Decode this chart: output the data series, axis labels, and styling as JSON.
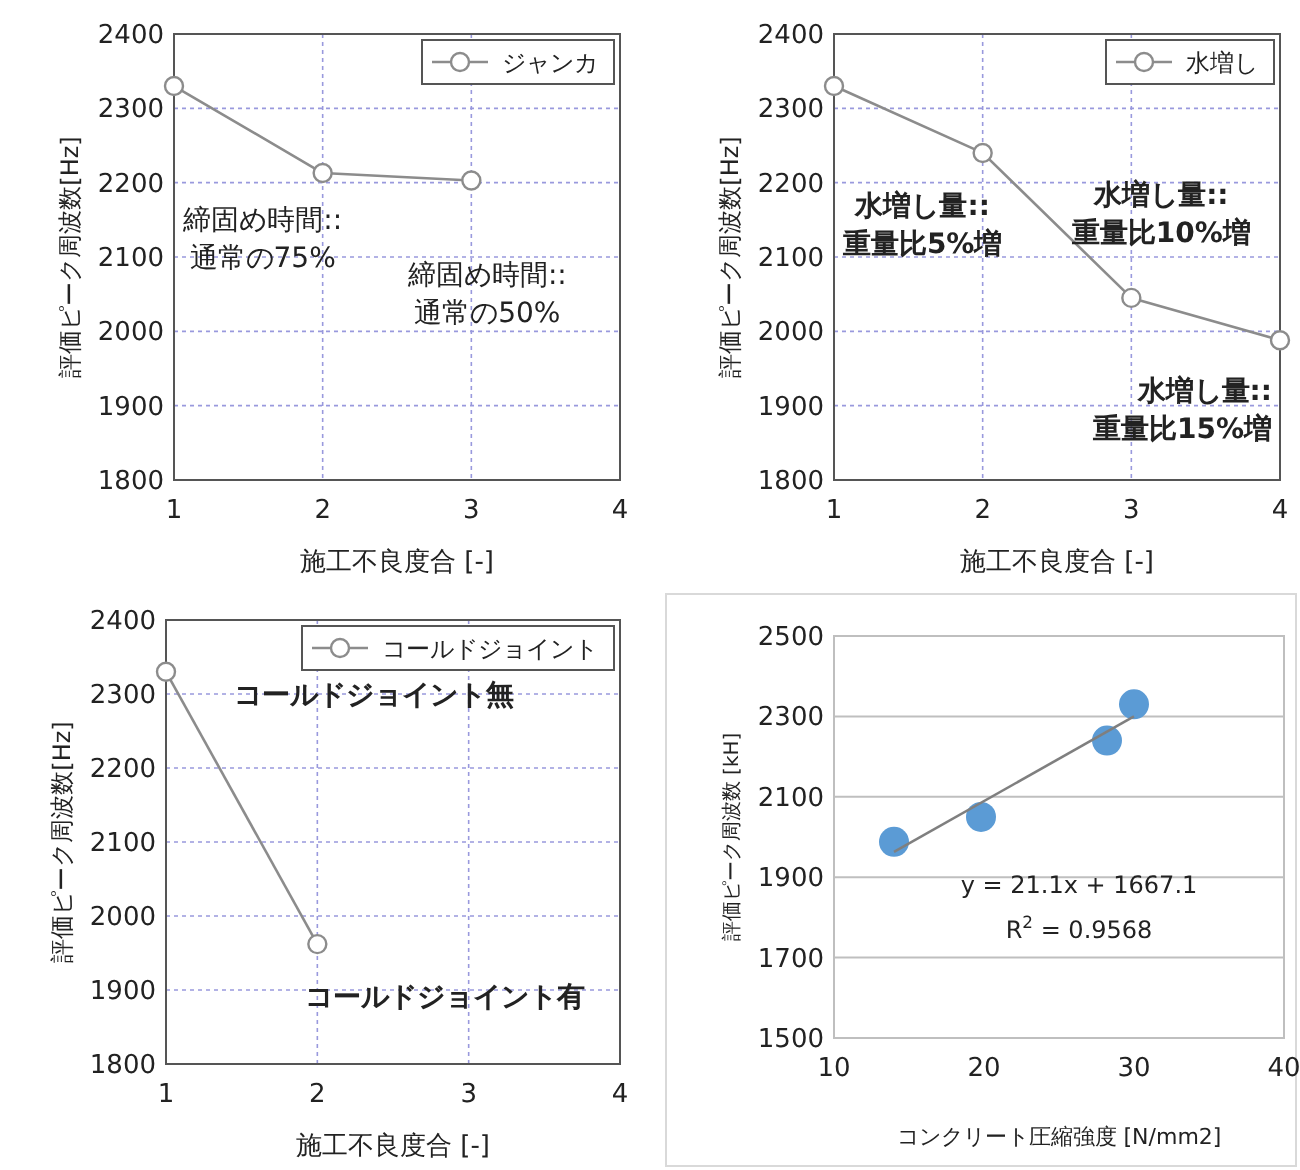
{
  "chart_data": [
    {
      "type": "line",
      "x": [
        1,
        2,
        3
      ],
      "series": [
        {
          "name": "ジャンカ",
          "color": "#8c8c8c",
          "values": [
            2330,
            2213,
            2203
          ]
        }
      ],
      "xlim": [
        1,
        4
      ],
      "xticks": [
        1,
        2,
        3,
        4
      ],
      "ylim": [
        1800,
        2400
      ],
      "yticks": [
        1800,
        1900,
        2000,
        2100,
        2200,
        2300,
        2400
      ],
      "xlabel": "施工不良度合 [-]",
      "ylabel": "評価ピーク周波数[Hz]",
      "grid": true,
      "legend": "top right",
      "marker": "circle",
      "annotations": [
        {
          "text": "締固め時間::\n通常の75%",
          "x": 2,
          "y": 2213
        },
        {
          "text": "締固め時間::\n通常の50%",
          "x": 3,
          "y": 2203
        }
      ]
    },
    {
      "type": "line",
      "x": [
        1,
        2,
        3,
        4
      ],
      "series": [
        {
          "name": "水増し",
          "color": "#8c8c8c",
          "values": [
            2330,
            2240,
            2045,
            1988
          ]
        }
      ],
      "xlim": [
        1,
        4
      ],
      "xticks": [
        1,
        2,
        3,
        4
      ],
      "ylim": [
        1800,
        2400
      ],
      "yticks": [
        1800,
        1900,
        2000,
        2100,
        2200,
        2300,
        2400
      ],
      "xlabel": "施工不良度合 [-]",
      "ylabel": "評価ピーク周波数[Hz]",
      "grid": true,
      "legend": "top right",
      "marker": "circle",
      "annotations": [
        {
          "text": "水増し量::\n重量比5%増",
          "x": 2,
          "y": 2240
        },
        {
          "text": "水増し量::\n重量比10%増",
          "x": 3,
          "y": 2045
        },
        {
          "text": "水増し量::\n重量比15%増",
          "x": 4,
          "y": 1988
        }
      ]
    },
    {
      "type": "line",
      "x": [
        1,
        2
      ],
      "series": [
        {
          "name": "コールドジョイント",
          "color": "#8c8c8c",
          "values": [
            2330,
            1962
          ]
        }
      ],
      "xlim": [
        1,
        4
      ],
      "xticks": [
        1,
        2,
        3,
        4
      ],
      "ylim": [
        1800,
        2400
      ],
      "yticks": [
        1800,
        1900,
        2000,
        2100,
        2200,
        2300,
        2400
      ],
      "xlabel": "施工不良度合 [-]",
      "ylabel": "評価ピーク周波数[Hz]",
      "grid": true,
      "legend": "top right",
      "marker": "circle",
      "annotations": [
        {
          "text": "コールドジョイント無",
          "x": 1,
          "y": 2330
        },
        {
          "text": "コールドジョイント有",
          "x": 2,
          "y": 1962
        }
      ]
    },
    {
      "type": "scatter",
      "series": [
        {
          "color": "#5b9bd5",
          "x": [
            14,
            19.8,
            28.2,
            30
          ],
          "values": [
            1988,
            2050,
            2240,
            2330
          ]
        },
        {
          "type": "line",
          "color": "#7f7f7f",
          "x": [
            14,
            30
          ],
          "values": [
            1963,
            2300
          ]
        }
      ],
      "xlim": [
        10,
        40
      ],
      "xticks": [
        10,
        20,
        30,
        40
      ],
      "ylim": [
        1500,
        2500
      ],
      "yticks": [
        1500,
        1700,
        1900,
        2100,
        2300,
        2500
      ],
      "xlabel": "コンクリート圧縮強度 [N/mm2]",
      "ylabel": "評価ピーク周波数 [kH]",
      "grid": "y",
      "annotations": [
        "y = 21.1x + 1667.1",
        "R$^{2}$ = 0.9568"
      ]
    }
  ]
}
